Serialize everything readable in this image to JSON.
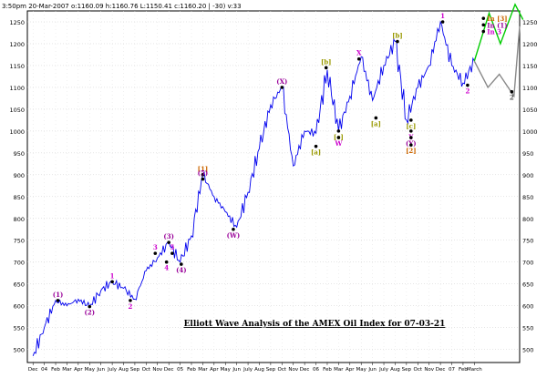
{
  "chart_data": {
    "type": "line",
    "header_text": "3:50pm 20-Mar-2007  o:1160.09  h:1160.76  L:1150.41  c:1160.20  |  -30)  v:33",
    "title": "Elliott Wave Analysis of the AMEX Oil Index for 07-03-21",
    "ylim": [
      470,
      1275
    ],
    "y_ticks": [
      500,
      550,
      600,
      650,
      700,
      750,
      800,
      850,
      900,
      950,
      1000,
      1050,
      1100,
      1150,
      1200,
      1250
    ],
    "x_ticks": [
      "Dec",
      "04",
      "Feb",
      "Mar",
      "Apr",
      "May",
      "Jun",
      "July",
      "Aug",
      "Sep",
      "Oct",
      "Nov",
      "Dec",
      "05",
      "Feb",
      "Mar",
      "Apr",
      "May",
      "Jun",
      "July",
      "Aug",
      "Sep",
      "Oct",
      "Nov",
      "Dec",
      "06",
      "Feb",
      "Mar",
      "Apr",
      "May",
      "Jun",
      "July",
      "Aug",
      "Sep",
      "Oct",
      "Nov",
      "Dec",
      "07",
      "Feb",
      "March"
    ],
    "grid": true,
    "series": [
      {
        "color": "#0000ee",
        "x": [
          0,
          1,
          2,
          3,
          4,
          5,
          6,
          7,
          8,
          9,
          10,
          11,
          12,
          13,
          14,
          15,
          16,
          17,
          18,
          19,
          20,
          21,
          22,
          23,
          24,
          25,
          26,
          27,
          28,
          29,
          30,
          31,
          32,
          33,
          34,
          35,
          36,
          37,
          38,
          39
        ],
        "values": [
          485,
          550,
          612,
          600,
          615,
          598,
          635,
          655,
          640,
          615,
          680,
          710,
          745,
          700,
          760,
          900,
          850,
          815,
          780,
          860,
          960,
          1060,
          1100,
          920,
          1000,
          995,
          1140,
          1000,
          1080,
          1170,
          1070,
          1150,
          1205,
          1025,
          1100,
          1150,
          1250,
          1150,
          1110,
          1160
        ]
      }
    ],
    "forecast_paths": [
      {
        "color": "#00cc00",
        "x": [
          39,
          40.3,
          41.3,
          42.6,
          43.3
        ],
        "values": [
          1160,
          1270,
          1200,
          1290,
          1255
        ]
      },
      {
        "color": "#888888",
        "x": [
          39,
          40.2,
          41.2,
          42.5,
          43.0
        ],
        "values": [
          1160,
          1100,
          1130,
          1080,
          1240
        ]
      }
    ],
    "annotations": [
      {
        "text": "(1)",
        "x": 2.2,
        "y": 612,
        "color": "#990099",
        "pos": "above"
      },
      {
        "text": "(2)",
        "x": 5.0,
        "y": 598,
        "color": "#990099",
        "pos": "below"
      },
      {
        "text": "1",
        "x": 7.0,
        "y": 655,
        "color": "#cc00cc",
        "pos": "above"
      },
      {
        "text": "2",
        "x": 8.6,
        "y": 612,
        "color": "#cc00cc",
        "pos": "below"
      },
      {
        "text": "3",
        "x": 10.8,
        "y": 720,
        "color": "#cc00cc",
        "pos": "above"
      },
      {
        "text": "(3)",
        "x": 12.0,
        "y": 745,
        "color": "#990099",
        "pos": "above"
      },
      {
        "text": "4",
        "x": 11.8,
        "y": 700,
        "color": "#cc00cc",
        "pos": "below"
      },
      {
        "text": "5",
        "x": 12.3,
        "y": 720,
        "color": "#cc00cc",
        "pos": "above"
      },
      {
        "text": "(4)",
        "x": 13.1,
        "y": 695,
        "color": "#990099",
        "pos": "below"
      },
      {
        "text": "[1]",
        "x": 15.0,
        "y": 900,
        "color": "#cc6600",
        "pos": "above"
      },
      {
        "text": "(5)",
        "x": 15.0,
        "y": 890,
        "color": "#990099",
        "pos": "above"
      },
      {
        "text": "(W)",
        "x": 17.7,
        "y": 775,
        "color": "#990099",
        "pos": "below"
      },
      {
        "text": "(X)",
        "x": 22.0,
        "y": 1100,
        "color": "#990099",
        "pos": "above"
      },
      {
        "text": "[b]",
        "x": 25.9,
        "y": 1145,
        "color": "#999900",
        "pos": "above"
      },
      {
        "text": "[a]",
        "x": 25.0,
        "y": 965,
        "color": "#999900",
        "pos": "below"
      },
      {
        "text": "[c]",
        "x": 27.0,
        "y": 1000,
        "color": "#999900",
        "pos": "below"
      },
      {
        "text": "W",
        "x": 27.0,
        "y": 985,
        "color": "#cc00cc",
        "pos": "below"
      },
      {
        "text": "X",
        "x": 28.8,
        "y": 1165,
        "color": "#cc00cc",
        "pos": "above"
      },
      {
        "text": "[a]",
        "x": 30.3,
        "y": 1030,
        "color": "#999900",
        "pos": "below"
      },
      {
        "text": "[b]",
        "x": 32.2,
        "y": 1205,
        "color": "#999900",
        "pos": "above"
      },
      {
        "text": "[c]",
        "x": 33.4,
        "y": 1025,
        "color": "#999900",
        "pos": "below"
      },
      {
        "text": "Y",
        "x": 33.4,
        "y": 1000,
        "color": "#cc00cc",
        "pos": "below"
      },
      {
        "text": "(Y)",
        "x": 33.4,
        "y": 985,
        "color": "#990099",
        "pos": "below"
      },
      {
        "text": "[2]",
        "x": 33.4,
        "y": 968,
        "color": "#cc6600",
        "pos": "below"
      },
      {
        "text": "1",
        "x": 36.2,
        "y": 1250,
        "color": "#cc00cc",
        "pos": "above"
      },
      {
        "text": "2",
        "x": 38.4,
        "y": 1105,
        "color": "#cc00cc",
        "pos": "below"
      },
      {
        "text": "In [3]",
        "x": 39.8,
        "y": 1258,
        "color": "#cc6600",
        "pos": "right"
      },
      {
        "text": "In (1)",
        "x": 39.8,
        "y": 1243,
        "color": "#990099",
        "pos": "right"
      },
      {
        "text": "In 3",
        "x": 39.8,
        "y": 1228,
        "color": "#cc00cc",
        "pos": "right"
      },
      {
        "text": "2",
        "x": 42.3,
        "y": 1090,
        "color": "#555555",
        "pos": "below"
      }
    ]
  }
}
